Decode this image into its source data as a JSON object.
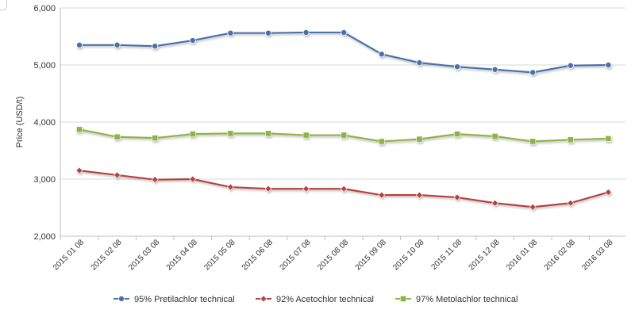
{
  "chart_data": {
    "type": "line",
    "xlabel": "",
    "ylabel": "Price (USD/t)",
    "ylim": [
      2000,
      6000
    ],
    "yticks": [
      "2,000",
      "3,000",
      "4,000",
      "5,000",
      "6,000"
    ],
    "grid": "horizontal",
    "legend": "bottom",
    "categories": [
      "2015 01 08",
      "2015 02 08",
      "2015 03 08",
      "2015 04 08",
      "2015 05 08",
      "2015 06 08",
      "2015 07 08",
      "2015 08 08",
      "2015 09 08",
      "2015 10 08",
      "2015 11 08",
      "2015 12 08",
      "2016 01 08",
      "2016 02 08",
      "2016 03 08"
    ],
    "series": [
      {
        "name": "95% Pretilachlor technical",
        "color": "#4a72a8",
        "marker": "circle",
        "values": [
          5350,
          5350,
          5330,
          5430,
          5560,
          5560,
          5570,
          5570,
          5190,
          5040,
          4970,
          4920,
          4870,
          4990,
          5000
        ]
      },
      {
        "name": "92% Acetochlor technical",
        "color": "#b54341",
        "marker": "diamond",
        "values": [
          3150,
          3070,
          2990,
          3000,
          2860,
          2830,
          2830,
          2830,
          2720,
          2720,
          2680,
          2580,
          2510,
          2580,
          2770
        ]
      },
      {
        "name": "97% Metolachlor technical",
        "color": "#8fb347",
        "marker": "square",
        "values": [
          3870,
          3740,
          3720,
          3790,
          3800,
          3800,
          3770,
          3770,
          3660,
          3700,
          3790,
          3750,
          3660,
          3690,
          3710
        ]
      }
    ]
  }
}
